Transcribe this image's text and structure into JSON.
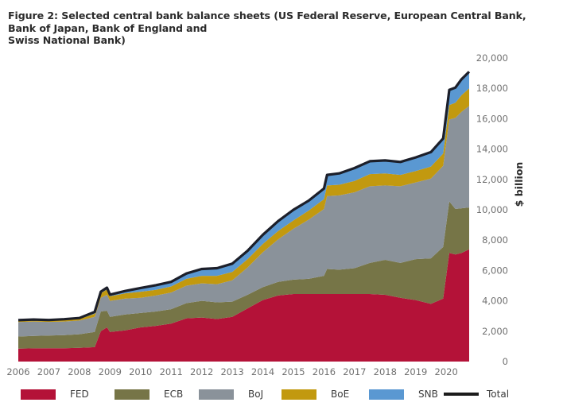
{
  "figure": {
    "title_lines": [
      "Figure 2: Selected central bank balance sheets (US Federal Reserve, European Central Bank,",
      "Bank of Japan, Bank of England and",
      "Swiss National Bank)"
    ]
  },
  "colors": {
    "FED": "#b41238",
    "ECB": "#767547",
    "BoJ": "#8a929a",
    "BoE": "#c2990f",
    "SNB": "#5a98d2",
    "Total": "#1c1f2a"
  },
  "legend": [
    {
      "key": "FED",
      "label": "FED",
      "kind": "area"
    },
    {
      "key": "ECB",
      "label": "ECB",
      "kind": "area"
    },
    {
      "key": "BoJ",
      "label": "BoJ",
      "kind": "area"
    },
    {
      "key": "BoE",
      "label": "BoE",
      "kind": "area"
    },
    {
      "key": "SNB",
      "label": "SNB",
      "kind": "area"
    },
    {
      "key": "Total",
      "label": "Total",
      "kind": "line"
    }
  ],
  "chart_data": {
    "type": "area",
    "stacked": true,
    "title": "Figure 2: Selected central bank balance sheets (US Federal Reserve, European Central Bank, Bank of Japan, Bank of England and Swiss National Bank)",
    "xlabel": "",
    "ylabel": "$ billion",
    "ylim": [
      0,
      20000
    ],
    "xlim": [
      2006,
      2020.75
    ],
    "y_ticks": [
      0,
      2000,
      4000,
      6000,
      8000,
      10000,
      12000,
      14000,
      16000,
      18000,
      20000
    ],
    "y_tick_labels": [
      "0",
      "2,000",
      "4,000",
      "6,000",
      "8,000",
      "10,000",
      "12,000",
      "14,000",
      "16,000",
      "18,000",
      "20,000"
    ],
    "x_tick_labels": [
      "2006",
      "2007",
      "2008",
      "2009",
      "2010",
      "2011",
      "2012",
      "2013",
      "2014",
      "2015",
      "2016",
      "2017",
      "2018",
      "2019",
      "2020"
    ],
    "y_axis_position": "right",
    "grid": false,
    "legend_position": "bottom",
    "x": [
      2006.0,
      2006.5,
      2007.0,
      2007.5,
      2008.0,
      2008.5,
      2008.7,
      2008.9,
      2009.0,
      2009.5,
      2010.0,
      2010.5,
      2011.0,
      2011.5,
      2012.0,
      2012.5,
      2013.0,
      2013.5,
      2014.0,
      2014.5,
      2015.0,
      2015.5,
      2016.0,
      2016.1,
      2016.5,
      2017.0,
      2017.5,
      2018.0,
      2018.5,
      2019.0,
      2019.5,
      2019.9,
      2020.1,
      2020.3,
      2020.5,
      2020.75
    ],
    "series": [
      {
        "name": "FED",
        "values": [
          850,
          870,
          880,
          880,
          900,
          950,
          2000,
          2250,
          1950,
          2050,
          2250,
          2350,
          2500,
          2850,
          2900,
          2800,
          2950,
          3500,
          4050,
          4350,
          4450,
          4450,
          4450,
          4450,
          4450,
          4450,
          4450,
          4400,
          4200,
          4050,
          3800,
          4150,
          7150,
          7050,
          7150,
          7400
        ]
      },
      {
        "name": "ECB",
        "values": [
          800,
          820,
          830,
          860,
          900,
          1000,
          1300,
          1100,
          1000,
          1050,
          950,
          950,
          950,
          1000,
          1100,
          1100,
          1000,
          900,
          850,
          900,
          950,
          1000,
          1200,
          1650,
          1600,
          1700,
          2050,
          2300,
          2300,
          2700,
          3000,
          3400,
          3400,
          3000,
          2950,
          2750
        ]
      },
      {
        "name": "BoJ",
        "values": [
          950,
          950,
          900,
          900,
          900,
          1000,
          900,
          1050,
          1050,
          1050,
          1000,
          1050,
          1100,
          1150,
          1150,
          1200,
          1400,
          1800,
          2300,
          2800,
          3350,
          3900,
          4400,
          4800,
          4900,
          5000,
          5050,
          4900,
          5050,
          5050,
          5250,
          5350,
          5400,
          6000,
          6350,
          6700
        ]
      },
      {
        "name": "BoE",
        "values": [
          80,
          80,
          80,
          90,
          100,
          200,
          300,
          350,
          300,
          350,
          400,
          380,
          400,
          450,
          500,
          550,
          550,
          550,
          550,
          550,
          550,
          600,
          650,
          700,
          700,
          750,
          800,
          800,
          750,
          750,
          800,
          800,
          950,
          1000,
          1100,
          1150
        ]
      },
      {
        "name": "SNB",
        "values": [
          50,
          50,
          50,
          60,
          70,
          120,
          100,
          120,
          110,
          150,
          250,
          300,
          300,
          350,
          450,
          500,
          550,
          550,
          600,
          650,
          700,
          650,
          700,
          700,
          750,
          850,
          850,
          850,
          850,
          900,
          950,
          1000,
          1000,
          1000,
          1050,
          1100
        ]
      }
    ],
    "total": {
      "name": "Total",
      "values": [
        2730,
        2770,
        2740,
        2790,
        2870,
        3270,
        4600,
        4870,
        4410,
        4650,
        4850,
        5030,
        5250,
        5800,
        6100,
        6150,
        6450,
        7300,
        8350,
        9250,
        10000,
        10600,
        11400,
        12300,
        12400,
        12750,
        13200,
        13250,
        13150,
        13450,
        13800,
        14700,
        17900,
        18050,
        18600,
        19100
      ]
    }
  }
}
